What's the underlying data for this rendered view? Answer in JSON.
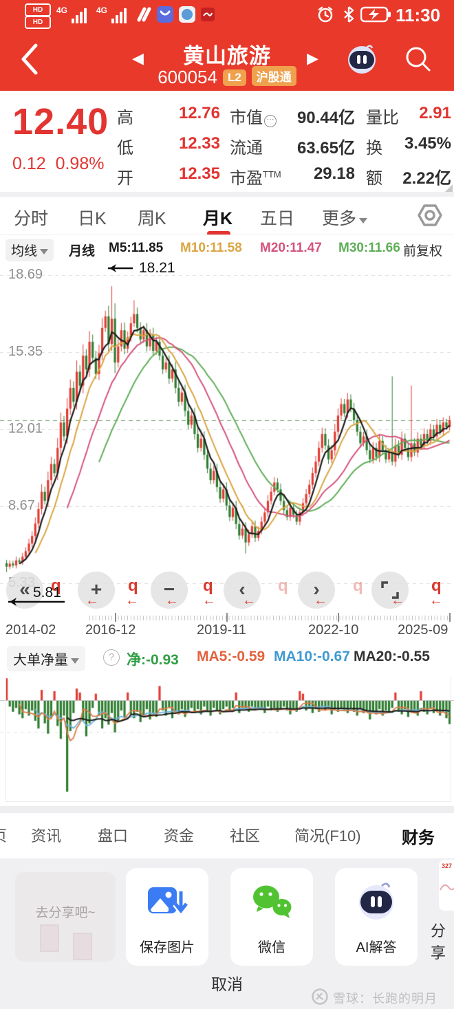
{
  "status_bar": {
    "time": "11:30",
    "hd1": "HD",
    "hd2": "HD",
    "net1": "4G",
    "net2": "4G"
  },
  "header": {
    "title": "黄山旅游",
    "code": "600054",
    "badge_l2": "L2",
    "badge_hgt": "沪股通",
    "prev": "◀",
    "next": "▶"
  },
  "quote": {
    "price": "12.40",
    "change": "0.12",
    "change_pct": "0.98%",
    "stats": [
      {
        "label": "高",
        "value": "12.76"
      },
      {
        "label": "市值",
        "icon": "⋯",
        "value": "90.44亿"
      },
      {
        "label": "量比",
        "value": "2.91"
      },
      {
        "label": "低",
        "value": "12.33"
      },
      {
        "label": "流通",
        "value": "63.65亿"
      },
      {
        "label": "换",
        "value": "3.45%"
      },
      {
        "label": "开",
        "value": "12.35"
      },
      {
        "label": "市盈",
        "sup": "TTM",
        "value": "29.18"
      },
      {
        "label": "额",
        "value": "2.22亿"
      }
    ]
  },
  "tabs": {
    "items": [
      "分时",
      "日K",
      "周K",
      "月K",
      "五日",
      "更多"
    ],
    "active": "月K"
  },
  "ma_bar": {
    "dropdown": "均线",
    "period": "月线",
    "m5": "M5:11.85",
    "m10": "M10:11.58",
    "m20": "M20:11.47",
    "m30": "M30:11.66",
    "right": "前复权"
  },
  "overlay": {
    "high_note": "18.21",
    "low_note": "5.81",
    "q": "q",
    "arrow": "←",
    "buttons": [
      "«",
      "+",
      "−",
      "‹",
      "›"
    ]
  },
  "chart_data": [
    {
      "type": "candlestick",
      "title": "黄山旅游 600054 月K 前复权",
      "x_labels": [
        "2014-02",
        "2016-12",
        "2019-11",
        "2022-10",
        "2025-09"
      ],
      "y_ticks": [
        18.69,
        15.35,
        12.01,
        8.67,
        5.33
      ],
      "y_tick_labels": [
        "18.69",
        "15.35",
        "12.01",
        "8.67",
        "5.33"
      ],
      "ylim": [
        5.33,
        18.69
      ],
      "high": 18.21,
      "low": 5.81,
      "current_price": 12.4,
      "ma_values": {
        "M5": 11.85,
        "M10": 11.58,
        "M20": 11.47,
        "M30": 11.66
      },
      "first_open": 6.2,
      "closes": [
        6.05,
        6.18,
        6.1,
        6.32,
        6.25,
        6.48,
        6.72,
        7.05,
        7.38,
        7.92,
        8.55,
        9.3,
        8.9,
        9.8,
        10.5,
        10.1,
        11.2,
        12.3,
        11.7,
        12.9,
        13.8,
        13.2,
        14.5,
        13.9,
        15.2,
        14.6,
        15.8,
        15.1,
        14.4,
        15.3,
        16.4,
        16.9,
        15.7,
        16.8,
        14.9,
        15.6,
        16.3,
        15.5,
        16.0,
        16.6,
        17.0,
        16.4,
        15.9,
        16.3,
        15.6,
        16.1,
        15.4,
        15.8,
        15.2,
        14.6,
        14.9,
        14.2,
        14.6,
        13.8,
        13.2,
        13.6,
        12.8,
        12.2,
        12.6,
        11.8,
        11.2,
        11.6,
        10.9,
        10.3,
        9.8,
        10.2,
        9.5,
        9.0,
        9.4,
        8.7,
        8.2,
        8.6,
        7.9,
        7.4,
        7.7,
        7.1,
        7.45,
        7.8,
        7.3,
        7.6,
        8.0,
        8.4,
        8.9,
        9.3,
        9.7,
        9.4,
        8.9,
        8.5,
        8.2,
        8.6,
        8.3,
        8.0,
        8.4,
        8.8,
        9.2,
        9.6,
        10.1,
        10.6,
        11.2,
        11.8,
        11.3,
        10.7,
        11.1,
        11.9,
        12.6,
        13.1,
        12.7,
        13.3,
        12.9,
        12.4,
        11.9,
        11.4,
        11.7,
        11.1,
        10.7,
        11.2,
        10.8,
        11.5,
        11.1,
        10.7,
        11.0,
        10.6,
        11.3,
        10.9,
        11.6,
        11.2,
        10.8,
        11.4,
        11.0,
        11.6,
        11.3,
        11.8,
        11.5,
        12.0,
        11.7,
        12.2,
        11.9,
        12.3,
        12.1,
        12.4
      ],
      "wick_highs": {
        "33": 18.21,
        "40": 17.6,
        "121": 14.3,
        "127": 13.9
      },
      "wick_lows": {
        "0": 5.81,
        "75": 6.62
      },
      "colors": {
        "up": "#e23b33",
        "down": "#2f7d31",
        "m5": "#1a1a1a",
        "m10": "#dba440",
        "m20": "#d5547c",
        "m30": "#5fae57",
        "current_line": "#6f9f6f",
        "grid": "#dcdcdc"
      }
    },
    {
      "type": "bar",
      "title": "大单净量",
      "latest": {
        "net": -0.93,
        "MA5": -0.59,
        "MA10": -0.67,
        "MA20": -0.55
      },
      "ylim": [
        0.9,
        -3.6
      ],
      "gridline": -1.23,
      "values": [
        0.85,
        -0.25,
        -0.45,
        -0.3,
        -0.55,
        -0.7,
        -0.35,
        -0.6,
        -0.4,
        -0.8,
        -1.1,
        0.4,
        -0.9,
        -1.3,
        -0.7,
        0.35,
        -1.0,
        -1.5,
        -0.6,
        -3.55,
        -1.2,
        -0.5,
        0.45,
        0.3,
        -0.8,
        -1.4,
        -0.9,
        -0.3,
        0.25,
        -0.6,
        -1.1,
        -0.7,
        -0.95,
        -0.5,
        -1.25,
        -0.8,
        -0.4,
        -0.65,
        0.3,
        -0.55,
        -0.7,
        -0.45,
        -0.85,
        -0.6,
        -0.35,
        -0.75,
        -0.5,
        -0.65,
        0.55,
        -0.4,
        -0.6,
        -0.3,
        -0.7,
        -0.45,
        -0.55,
        -0.35,
        -0.65,
        -0.4,
        -0.3,
        -0.5,
        -0.35,
        -0.55,
        -0.25,
        -0.45,
        -0.6,
        -0.3,
        -0.4,
        -0.55,
        -0.35,
        -0.25,
        -0.45,
        -0.3,
        0.3,
        -0.5,
        -0.35,
        -0.35,
        -0.45,
        -0.25,
        -0.4,
        -0.3,
        -0.35,
        -0.5,
        -0.25,
        -0.4,
        -0.3,
        -0.45,
        -0.35,
        -0.25,
        -0.4,
        -0.55,
        -0.3,
        -0.45,
        0.35,
        0.25,
        -0.4,
        -0.3,
        -0.5,
        -0.35,
        -0.45,
        -0.25,
        -0.4,
        -0.3,
        -0.55,
        -0.35,
        -0.45,
        -0.3,
        -0.4,
        -0.5,
        -0.3,
        -0.45,
        -0.6,
        -0.35,
        -0.5,
        -0.4,
        -0.75,
        -0.45,
        -0.55,
        -0.35,
        -0.6,
        -0.4,
        -0.5,
        -0.3,
        0.3,
        -0.45,
        -0.55,
        -0.35,
        -0.65,
        -0.4,
        -0.5,
        -0.6,
        0.35,
        -0.45,
        -0.55,
        -0.35,
        -0.5,
        -0.4,
        -0.6,
        -0.45,
        -0.7,
        -0.93
      ],
      "colors": {
        "pos": "#e23b33",
        "neg": "#2f7d31",
        "ma5": "#e07a45",
        "ma10": "#6fb3dd",
        "ma20": "#1a1a1a"
      }
    }
  ],
  "indicator_bar": {
    "dropdown": "大单净量",
    "help": "?",
    "net": "净:-0.93",
    "ma5": "MA5:-0.59",
    "ma10": "MA10:-0.67",
    "ma20": "MA20:-0.55"
  },
  "bottom_nav": {
    "partial": "页",
    "items": [
      "资讯",
      "盘口",
      "资金",
      "社区",
      "简况(F10)",
      "财务"
    ],
    "active": "财务"
  },
  "share_sheet": {
    "teaser": "去分享吧~",
    "cards": [
      "保存图片",
      "微信",
      "AI解答"
    ],
    "partial_thumb_text": "327",
    "partial_label": "分享",
    "cancel": "取消"
  },
  "watermark": "雪球：长跑的明月"
}
